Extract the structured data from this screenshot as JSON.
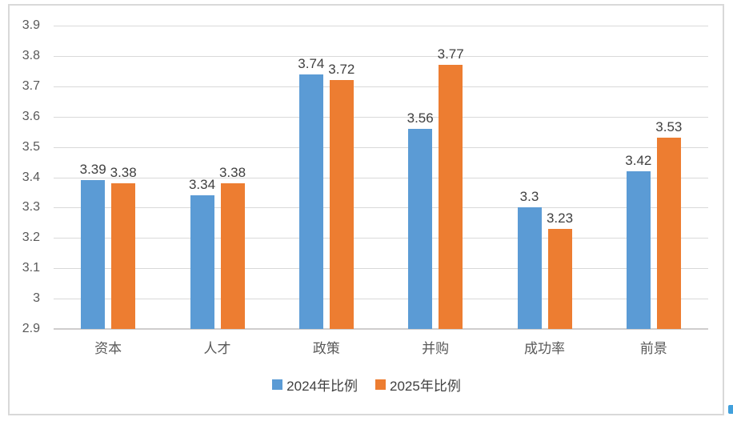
{
  "chart_data": {
    "type": "bar",
    "title": "",
    "xlabel": "",
    "ylabel": "",
    "categories": [
      "资本",
      "人才",
      "政策",
      "并购",
      "成功率",
      "前景"
    ],
    "series": [
      {
        "name": "2024年比例",
        "color": "#5B9BD5",
        "values": [
          3.39,
          3.34,
          3.74,
          3.56,
          3.3,
          3.42
        ],
        "labels": [
          "3.39",
          "3.34",
          "3.74",
          "3.56",
          "3.3",
          "3.42"
        ]
      },
      {
        "name": "2025年比例",
        "color": "#ED7D31",
        "values": [
          3.38,
          3.38,
          3.72,
          3.77,
          3.23,
          3.53
        ],
        "labels": [
          "3.38",
          "3.38",
          "3.72",
          "3.77",
          "3.23",
          "3.53"
        ]
      }
    ],
    "ylim": [
      2.9,
      3.9
    ],
    "ytick_step": 0.1,
    "yticks": [
      "3.9",
      "3.8",
      "3.7",
      "3.6",
      "3.5",
      "3.4",
      "3.3",
      "3.2",
      "3.1",
      "3",
      "2.9"
    ],
    "ytick_values": [
      3.9,
      3.8,
      3.7,
      3.6,
      3.5,
      3.4,
      3.3,
      3.2,
      3.1,
      3.0,
      2.9
    ],
    "grid": "horizontal",
    "legend_position": "bottom"
  },
  "colors": {
    "gridline": "#D9D9D9",
    "axis_line": "#CFCDCD",
    "tick_text": "#595959",
    "category_text": "#595959",
    "data_label_text": "#404040",
    "legend_text": "#404040",
    "frame_border": "#D9D9D9",
    "artifact_mark": "#41A0DC"
  }
}
